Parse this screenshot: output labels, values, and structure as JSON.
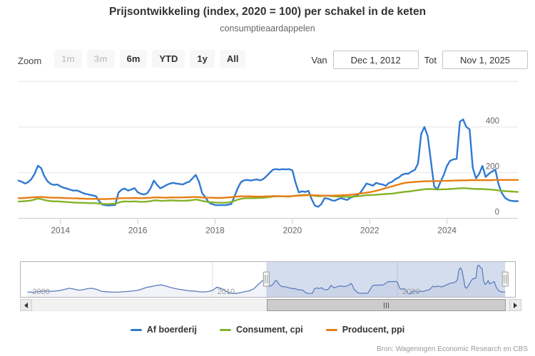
{
  "title": "Prijsontwikkeling (index, 2020 = 100) per schakel in de keten",
  "subtitle": "consumptieaardappelen",
  "range_selector": {
    "zoom_label": "Zoom",
    "buttons": [
      {
        "label": "1m",
        "enabled": false
      },
      {
        "label": "3m",
        "enabled": false
      },
      {
        "label": "6m",
        "enabled": true
      },
      {
        "label": "YTD",
        "enabled": true
      },
      {
        "label": "1y",
        "enabled": true
      },
      {
        "label": "All",
        "enabled": true
      }
    ],
    "from_label": "Van",
    "from_value": "Dec 1, 2012",
    "to_label": "Tot",
    "to_value": "Nov 1, 2025"
  },
  "credits": "Bron: Wageningen Economic Research en CBS",
  "chart_data": {
    "type": "line",
    "title": "Prijsontwikkeling (index, 2020 = 100) per schakel in de keten",
    "subtitle": "consumptieaardappelen",
    "x_unit": "monthly",
    "x_start": 2012.9167,
    "x_end": 2025.8333,
    "x_axis": {
      "tick_years": [
        2014,
        2016,
        2018,
        2020,
        2022,
        2024
      ]
    },
    "y_axis": {
      "tick_values": [
        0,
        200,
        400
      ],
      "top_gridline": 600,
      "position": "right"
    },
    "grid_color": "#e6e6e6",
    "series": [
      {
        "name": "Af boerderij",
        "color": "#3079d1",
        "values": [
          165,
          160,
          152,
          158,
          172,
          195,
          230,
          220,
          185,
          162,
          150,
          146,
          148,
          140,
          134,
          130,
          125,
          121,
          122,
          117,
          110,
          106,
          103,
          100,
          97,
          75,
          60,
          57,
          56,
          57,
          58,
          112,
          125,
          130,
          121,
          126,
          132,
          114,
          107,
          104,
          110,
          132,
          165,
          146,
          131,
          138,
          146,
          152,
          155,
          152,
          150,
          148,
          155,
          160,
          175,
          190,
          160,
          110,
          92,
          70,
          62,
          58,
          57,
          58,
          57,
          59,
          62,
          95,
          130,
          158,
          166,
          168,
          165,
          168,
          170,
          166,
          172,
          185,
          200,
          213,
          215,
          213,
          215,
          214,
          215,
          210,
          155,
          113,
          118,
          115,
          120,
          83,
          55,
          50,
          62,
          88,
          86,
          80,
          76,
          82,
          88,
          84,
          80,
          90,
          95,
          100,
          110,
          130,
          152,
          148,
          143,
          155,
          150,
          148,
          142,
          155,
          160,
          172,
          178,
          190,
          195,
          195,
          205,
          212,
          240,
          370,
          400,
          360,
          250,
          140,
          126,
          160,
          190,
          230,
          252,
          258,
          260,
          423,
          433,
          400,
          390,
          220,
          175,
          195,
          229,
          181,
          195,
          205,
          213,
          149,
          111,
          90,
          80,
          76,
          75,
          75
        ]
      },
      {
        "name": "Consument, cpi",
        "color": "#85b32a",
        "values": [
          73,
          74,
          75,
          76,
          78,
          82,
          86,
          84,
          80,
          77,
          75,
          74,
          74,
          73,
          72,
          71,
          70,
          69,
          68,
          68,
          67,
          67,
          66,
          66,
          66,
          64,
          63,
          62,
          62,
          63,
          64,
          68,
          72,
          74,
          73,
          73,
          74,
          73,
          72,
          72,
          73,
          75,
          78,
          78,
          76,
          76,
          77,
          78,
          78,
          77,
          77,
          76,
          77,
          78,
          80,
          82,
          80,
          76,
          73,
          71,
          70,
          69,
          68,
          68,
          68,
          69,
          71,
          76,
          81,
          85,
          87,
          88,
          88,
          88,
          89,
          89,
          90,
          91,
          93,
          95,
          96,
          96,
          96,
          95,
          95,
          97,
          99,
          100,
          101,
          102,
          102,
          100,
          98,
          97,
          97,
          98,
          99,
          97,
          96,
          95,
          95,
          94,
          94,
          94,
          95,
          96,
          97,
          99,
          101,
          101,
          102,
          103,
          104,
          105,
          106,
          107,
          108,
          110,
          112,
          114,
          116,
          117,
          119,
          121,
          123,
          125,
          127,
          128,
          128,
          127,
          126,
          126,
          127,
          127,
          128,
          129,
          130,
          131,
          132,
          131,
          130,
          129,
          128,
          128,
          128,
          127,
          126,
          125,
          124,
          122,
          120,
          119,
          118,
          117,
          116,
          115
        ]
      },
      {
        "name": "Producent, ppi",
        "color": "#e87d14",
        "values": [
          88,
          88,
          89,
          90,
          91,
          92,
          93,
          93,
          92,
          91,
          90,
          90,
          90,
          89,
          89,
          88,
          88,
          87,
          87,
          86,
          86,
          85,
          85,
          85,
          85,
          84,
          84,
          84,
          85,
          85,
          86,
          87,
          88,
          88,
          88,
          88,
          89,
          88,
          88,
          88,
          89,
          90,
          91,
          91,
          91,
          90,
          90,
          91,
          91,
          91,
          91,
          91,
          92,
          92,
          93,
          93,
          92,
          91,
          90,
          90,
          90,
          89,
          89,
          89,
          90,
          91,
          92,
          94,
          95,
          96,
          96,
          96,
          96,
          95,
          95,
          95,
          95,
          96,
          96,
          97,
          97,
          97,
          96,
          96,
          96,
          97,
          98,
          99,
          100,
          100,
          101,
          101,
          100,
          100,
          99,
          99,
          99,
          99,
          99,
          100,
          100,
          101,
          102,
          103,
          104,
          106,
          108,
          110,
          112,
          114,
          117,
          120,
          124,
          128,
          132,
          136,
          140,
          144,
          148,
          152,
          155,
          157,
          158,
          159,
          160,
          161,
          162,
          162,
          163,
          163,
          163,
          163,
          164,
          164,
          164,
          165,
          165,
          166,
          166,
          166,
          167,
          167,
          167,
          167,
          167,
          167,
          167,
          167,
          168,
          168,
          168,
          168,
          168,
          168,
          168,
          168
        ]
      }
    ],
    "navigator": {
      "series_name": "Af boerderij",
      "line_color": "#5b7cba",
      "mask_color": "rgba(102,133,194,0.28)",
      "x_start": 2000.0,
      "x_step": 0.25,
      "tick_labels": [
        "2000",
        "2010",
        "2020"
      ],
      "tick_years": [
        2000,
        2010,
        2020
      ],
      "selected_from": 2012.9167,
      "selected_to": 2025.8333,
      "pre_values": [
        75,
        72,
        78,
        85,
        90,
        85,
        88,
        95,
        110,
        125,
        115,
        100,
        105,
        120,
        125,
        110,
        85,
        78,
        75,
        72,
        75,
        80,
        85,
        90,
        100,
        120,
        140,
        150,
        165,
        170,
        155,
        135,
        120,
        110,
        100,
        90,
        88,
        80,
        75,
        80,
        95,
        140,
        120,
        85,
        60,
        55,
        65,
        80,
        90,
        120,
        180,
        235
      ]
    }
  }
}
